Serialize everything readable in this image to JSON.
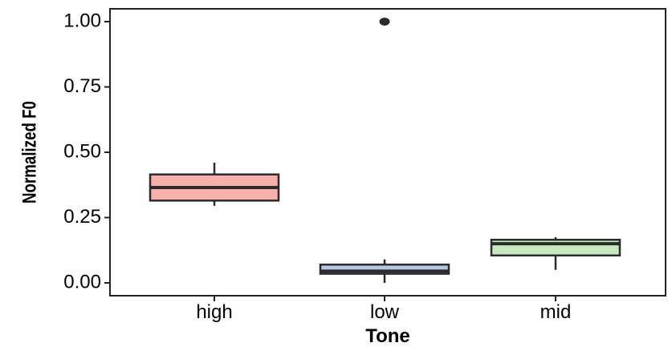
{
  "chart_data": {
    "type": "box",
    "title": "",
    "xlabel": "Tone",
    "ylabel": "Normalized F0",
    "ylim": [
      -0.05,
      1.05
    ],
    "yticks": [
      0.0,
      0.25,
      0.5,
      0.75,
      1.0
    ],
    "ytick_labels": [
      "0.00",
      "0.25",
      "0.50",
      "0.75",
      "1.00"
    ],
    "grid": false,
    "legend": "none",
    "categories": [
      "high",
      "low",
      "mid"
    ],
    "boxes": [
      {
        "category": "high",
        "whisker_low": 0.295,
        "q1": 0.315,
        "median": 0.365,
        "q3": 0.415,
        "whisker_high": 0.46,
        "outliers": [],
        "color": "#f8b0ac"
      },
      {
        "category": "low",
        "whisker_low": 0.0,
        "q1": 0.035,
        "median": 0.045,
        "q3": 0.07,
        "whisker_high": 0.09,
        "outliers": [
          1.0
        ],
        "color": "#b4c8e4"
      },
      {
        "category": "mid",
        "whisker_low": 0.05,
        "q1": 0.105,
        "median": 0.15,
        "q3": 0.165,
        "whisker_high": 0.175,
        "outliers": [],
        "color": "#c8e8c0"
      }
    ]
  }
}
